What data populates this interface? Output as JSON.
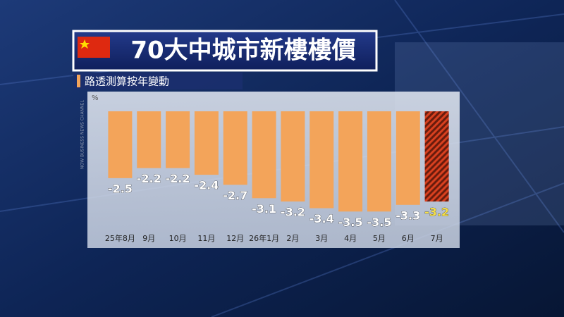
{
  "chart_data": {
    "type": "bar",
    "title": "70大中城市新樓樓價",
    "subtitle": "路透測算按年變動",
    "unit": "%",
    "channel": "NOW BUSINESS NEWS CHANNEL",
    "categories": [
      "25年8月",
      "9月",
      "10月",
      "11月",
      "12月",
      "26年1月",
      "2月",
      "3月",
      "4月",
      "5月",
      "6月",
      "7月"
    ],
    "values": [
      -2.5,
      -2.2,
      -2.2,
      -2.4,
      -2.7,
      -3.1,
      -3.2,
      -3.4,
      -3.5,
      -3.5,
      -3.3,
      -3.2
    ],
    "bar_colors": [
      "#f3a45a",
      "#f3a45a",
      "#f3a45a",
      "#f3a45a",
      "#f3a45a",
      "#f3a45a",
      "#f3a45a",
      "#f3a45a",
      "#f3a45a",
      "#f3a45a",
      "#f3a45a",
      "#d8401f"
    ],
    "hatched": [
      false,
      false,
      false,
      false,
      false,
      false,
      false,
      false,
      false,
      false,
      false,
      true
    ],
    "label_colors": [
      "#ffffff",
      "#ffffff",
      "#ffffff",
      "#ffffff",
      "#ffffff",
      "#ffffff",
      "#ffffff",
      "#ffffff",
      "#ffffff",
      "#ffffff",
      "#ffffff",
      "#f6e04a"
    ],
    "ylim": [
      -4,
      -0.5
    ]
  }
}
